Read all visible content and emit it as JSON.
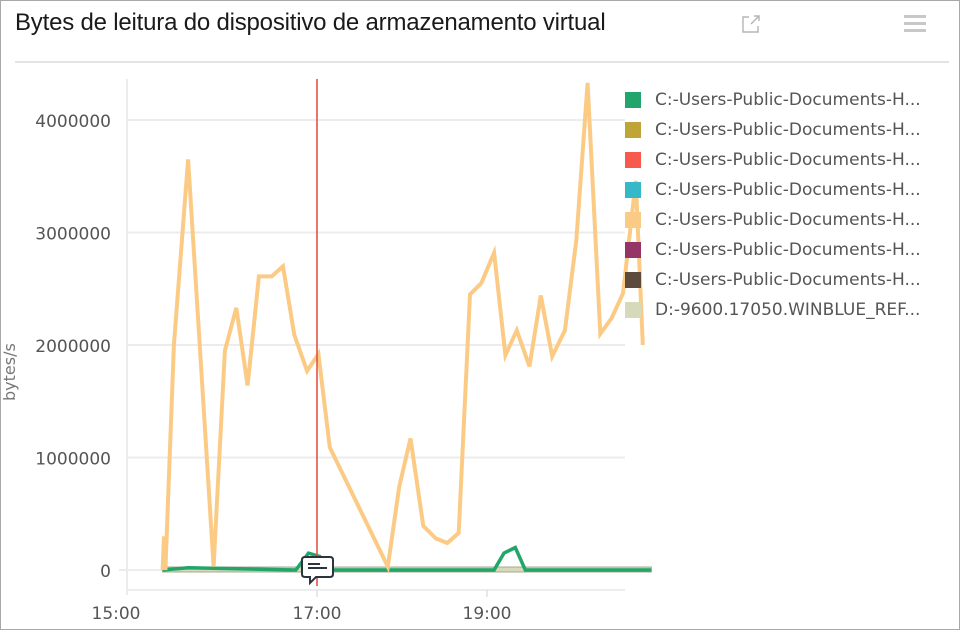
{
  "header": {
    "title": "Bytes de leitura do dispositivo de armazenamento virtual",
    "popout_icon": "external-link-icon",
    "menu_icon": "hamburger-menu-icon"
  },
  "legend": {
    "items": [
      {
        "label": "C:-Users-Public-Documents-H...",
        "color": "#22a56a"
      },
      {
        "label": "C:-Users-Public-Documents-H...",
        "color": "#bfa535"
      },
      {
        "label": "C:-Users-Public-Documents-H...",
        "color": "#f7594d"
      },
      {
        "label": "C:-Users-Public-Documents-H...",
        "color": "#35b8c8"
      },
      {
        "label": "C:-Users-Public-Documents-H...",
        "color": "#fbcb86"
      },
      {
        "label": "C:-Users-Public-Documents-H...",
        "color": "#953467"
      },
      {
        "label": "C:-Users-Public-Documents-H...",
        "color": "#5c4a3c"
      },
      {
        "label": "D:-9600.17050.WINBLUE_REF...",
        "color": "#d6dab8"
      }
    ]
  },
  "annotation": {
    "icon": "comment-icon",
    "marker_time": "17:00",
    "marker_color": "#e04a3a"
  },
  "chart_data": {
    "type": "line",
    "title": "Bytes de leitura do dispositivo de armazenamento virtual",
    "xlabel": "",
    "ylabel": "bytes/s",
    "x_ticks": [
      "15:00",
      "17:00",
      "19:00"
    ],
    "y_ticks": [
      0,
      1000000,
      2000000,
      3000000,
      4000000
    ],
    "ylim": [
      -200000,
      4400000
    ],
    "grid": true,
    "legend_position": "right",
    "series": [
      {
        "name": "C:-Users-Public-Documents-H... (orange)",
        "color": "#fbcb86",
        "points": [
          [
            "15:11",
            0
          ],
          [
            "15:12",
            300000
          ],
          [
            "15:13",
            0
          ],
          [
            "15:19",
            2000000
          ],
          [
            "15:29",
            3650000
          ],
          [
            "15:47",
            30000
          ],
          [
            "15:55",
            1950000
          ],
          [
            "16:03",
            2330000
          ],
          [
            "16:11",
            1640000
          ],
          [
            "16:19",
            2610000
          ],
          [
            "16:28",
            2610000
          ],
          [
            "16:36",
            2700000
          ],
          [
            "16:44",
            2090000
          ],
          [
            "16:53",
            1770000
          ],
          [
            "17:01",
            1920000
          ],
          [
            "17:09",
            1090000
          ],
          [
            "17:50",
            30000
          ],
          [
            "17:58",
            740000
          ],
          [
            "18:06",
            1170000
          ],
          [
            "18:15",
            390000
          ],
          [
            "18:24",
            280000
          ],
          [
            "18:32",
            240000
          ],
          [
            "18:40",
            330000
          ],
          [
            "18:48",
            2450000
          ],
          [
            "18:56",
            2550000
          ],
          [
            "19:05",
            2820000
          ],
          [
            "19:13",
            1910000
          ],
          [
            "19:21",
            2130000
          ],
          [
            "19:30",
            1810000
          ],
          [
            "19:38",
            2440000
          ],
          [
            "19:46",
            1900000
          ],
          [
            "19:55",
            2130000
          ],
          [
            "20:03",
            2930000
          ],
          [
            "20:11",
            4330000
          ],
          [
            "20:20",
            2100000
          ],
          [
            "20:28",
            2240000
          ],
          [
            "20:36",
            2460000
          ],
          [
            "20:45",
            3460000
          ],
          [
            "20:50",
            2000000
          ]
        ]
      },
      {
        "name": "C:-Users-Public-Documents-H... (green)",
        "color": "#22a56a",
        "points": [
          [
            "15:11",
            0
          ],
          [
            "15:29",
            20000
          ],
          [
            "16:45",
            0
          ],
          [
            "16:54",
            150000
          ],
          [
            "17:02",
            120000
          ],
          [
            "17:08",
            0
          ],
          [
            "19:05",
            0
          ],
          [
            "19:12",
            150000
          ],
          [
            "19:20",
            200000
          ],
          [
            "19:27",
            0
          ],
          [
            "20:56",
            0
          ]
        ]
      },
      {
        "name": "D:-9600.17050.WINBLUE_REF...",
        "color": "#d6dab8",
        "points": [
          [
            "15:11",
            0
          ],
          [
            "20:56",
            0
          ]
        ]
      }
    ]
  }
}
